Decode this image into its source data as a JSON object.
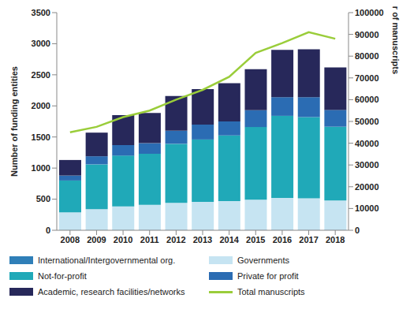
{
  "chart_data": {
    "type": "bar",
    "stacked": true,
    "grid": false,
    "legend": "bottom",
    "categories": [
      "2008",
      "2009",
      "2010",
      "2011",
      "2012",
      "2013",
      "2014",
      "2015",
      "2016",
      "2017",
      "2018"
    ],
    "ylabel": "Number of funding entities",
    "y2label": "Number of manuscripts",
    "ylim": [
      0,
      3500
    ],
    "yticks": [
      0,
      500,
      1000,
      1500,
      2000,
      2500,
      3000,
      3500
    ],
    "y2lim": [
      0,
      100000
    ],
    "y2ticks": [
      0,
      10000,
      20000,
      30000,
      40000,
      50000,
      60000,
      70000,
      80000,
      90000,
      100000
    ],
    "series": [
      {
        "name": "International/Intergovernmental org.",
        "type": "bar",
        "color": "#2f7fb8",
        "values": [
          5,
          5,
          5,
          5,
          5,
          5,
          5,
          5,
          5,
          5,
          5
        ]
      },
      {
        "name": "Governments",
        "type": "bar",
        "color": "#c6e4f2",
        "values": [
          285,
          335,
          380,
          405,
          435,
          450,
          465,
          485,
          515,
          510,
          475
        ]
      },
      {
        "name": "Not-for-profit",
        "type": "bar",
        "color": "#20a9b8",
        "values": [
          510,
          720,
          815,
          820,
          950,
          1005,
          1055,
          1170,
          1320,
          1305,
          1185
        ]
      },
      {
        "name": "Private for profit",
        "type": "bar",
        "color": "#2b6cb3",
        "values": [
          80,
          130,
          170,
          170,
          210,
          240,
          225,
          270,
          300,
          320,
          270
        ]
      },
      {
        "name": "Academic, research facilities/networks",
        "type": "bar",
        "color": "#27285a",
        "values": [
          250,
          380,
          480,
          485,
          560,
          570,
          615,
          660,
          760,
          770,
          685
        ]
      },
      {
        "name": "Total manuscripts",
        "type": "line",
        "axis": "y2",
        "color": "#9acd3a",
        "values": [
          45000,
          47500,
          52000,
          55000,
          60000,
          64500,
          70500,
          81500,
          86000,
          91000,
          88000
        ]
      }
    ]
  }
}
